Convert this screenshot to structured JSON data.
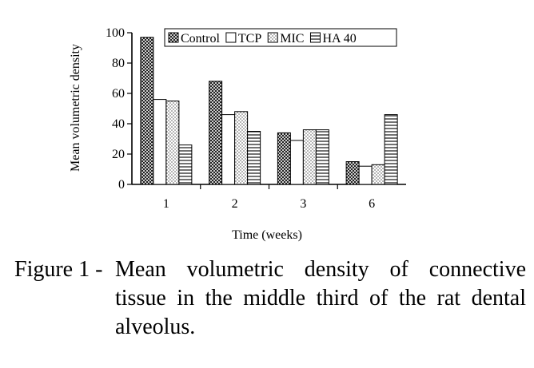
{
  "chart_data": {
    "type": "bar",
    "categories": [
      "1",
      "2",
      "3",
      "6"
    ],
    "series": [
      {
        "name": "Control",
        "values": [
          97,
          68,
          34,
          15
        ]
      },
      {
        "name": "TCP",
        "values": [
          56,
          46,
          29,
          12
        ]
      },
      {
        "name": "MIC",
        "values": [
          55,
          48,
          36,
          13
        ]
      },
      {
        "name": "HA 40",
        "values": [
          26,
          35,
          36,
          46
        ]
      }
    ],
    "xlabel": "Time (weeks)",
    "ylabel": "Mean volumetric density",
    "ylim": [
      0,
      100
    ],
    "yticks": [
      0,
      20,
      40,
      60,
      80,
      100
    ],
    "legend": "top",
    "grid": false
  },
  "caption": {
    "label": "Figure 1 -",
    "line1": "Mean volumetric density of connective",
    "line2": "tissue in the middle third of the rat dental",
    "line3": "alveolus."
  }
}
